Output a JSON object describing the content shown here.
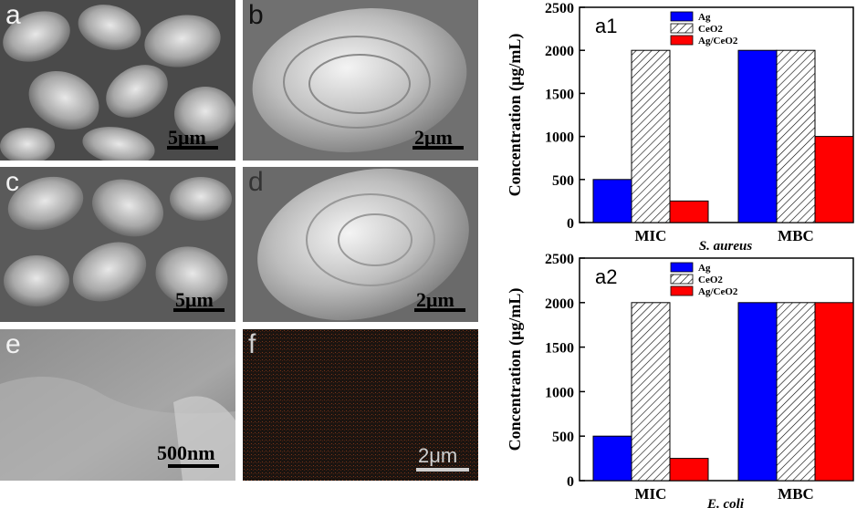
{
  "sem_panels": [
    {
      "id": "a",
      "label": "a",
      "scale": "5μm"
    },
    {
      "id": "b",
      "label": "b",
      "scale": "2μm"
    },
    {
      "id": "c",
      "label": "c",
      "scale": "5μm"
    },
    {
      "id": "d",
      "label": "d",
      "scale": "2μm"
    },
    {
      "id": "e",
      "label": "e",
      "scale": "500nm"
    },
    {
      "id": "f",
      "label": "f",
      "scale": "2μm"
    }
  ],
  "chart_data": [
    {
      "type": "bar",
      "panel_label": "a1",
      "categories": [
        "MIC",
        "MBC"
      ],
      "series": [
        {
          "name": "Ag",
          "values": [
            500,
            2000
          ],
          "color": "#0000ff",
          "pattern": "solid"
        },
        {
          "name": "CeO2",
          "values": [
            2000,
            2000
          ],
          "color": "#ffffff",
          "pattern": "hatch"
        },
        {
          "name": "Ag/CeO2",
          "values": [
            250,
            1000
          ],
          "color": "#ff0000",
          "pattern": "solid"
        }
      ],
      "xlabel": "S. aureus",
      "ylabel": "Concentration (μg/mL)",
      "ylim": [
        0,
        2500
      ],
      "yticks": [
        "0",
        "500",
        "1000",
        "1500",
        "2000",
        "2500"
      ],
      "legend_position": "top"
    },
    {
      "type": "bar",
      "panel_label": "a2",
      "categories": [
        "MIC",
        "MBC"
      ],
      "series": [
        {
          "name": "Ag",
          "values": [
            500,
            2000
          ],
          "color": "#0000ff",
          "pattern": "solid"
        },
        {
          "name": "CeO2",
          "values": [
            2000,
            2000
          ],
          "color": "#ffffff",
          "pattern": "hatch"
        },
        {
          "name": "Ag/CeO2",
          "values": [
            250,
            2000
          ],
          "color": "#ff0000",
          "pattern": "solid"
        }
      ],
      "xlabel": "E. coli",
      "ylabel": "Concentration (μg/mL)",
      "ylim": [
        0,
        2500
      ],
      "yticks": [
        "0",
        "500",
        "1000",
        "1500",
        "2000",
        "2500"
      ],
      "legend_position": "top"
    }
  ]
}
